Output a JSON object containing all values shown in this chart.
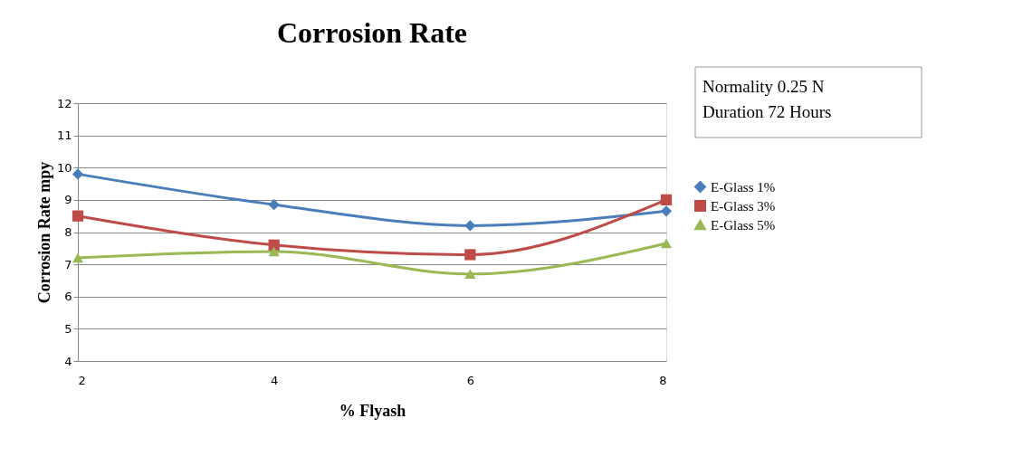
{
  "chart_data": {
    "type": "line",
    "title": "Corrosion Rate",
    "xlabel": "% Flyash",
    "ylabel": "Corrosion Rate mpy",
    "x": [
      2,
      4,
      6,
      8
    ],
    "series": [
      {
        "name": "E-Glass 1%",
        "color": "#4a7ebb",
        "marker": "diamond",
        "values": [
          9.8,
          8.85,
          8.2,
          8.65
        ]
      },
      {
        "name": "E-Glass 3%",
        "color": "#be4b48",
        "marker": "square",
        "values": [
          8.5,
          7.6,
          7.3,
          9.0
        ]
      },
      {
        "name": "E-Glass 5%",
        "color": "#98b954",
        "marker": "triangle",
        "values": [
          7.2,
          7.4,
          6.7,
          7.65
        ]
      }
    ],
    "xlim": [
      2,
      8
    ],
    "xticks": [
      2,
      4,
      6,
      8
    ],
    "ylim": [
      4,
      12
    ],
    "yticks": [
      4,
      5,
      6,
      7,
      8,
      9,
      10,
      11,
      12
    ],
    "grid": "y",
    "legend": "right",
    "line_style": "solid",
    "annotations": [
      "Normality 0.25 N",
      "Duration 72 Hours"
    ]
  }
}
